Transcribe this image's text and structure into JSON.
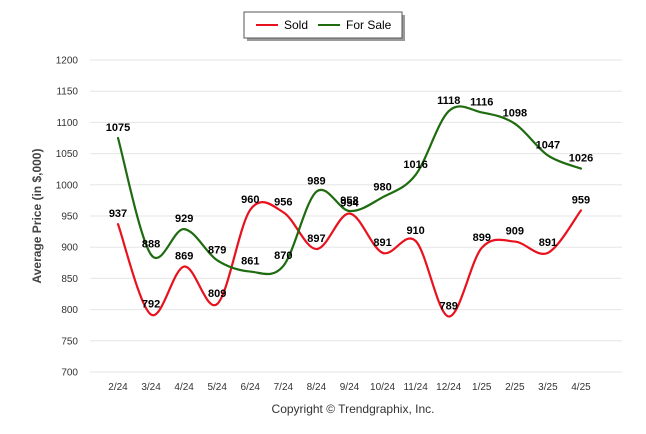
{
  "chart_data": {
    "type": "line",
    "categories": [
      "2/24",
      "3/24",
      "4/24",
      "5/24",
      "6/24",
      "7/24",
      "8/24",
      "9/24",
      "10/24",
      "11/24",
      "12/24",
      "1/25",
      "2/25",
      "3/25",
      "4/25"
    ],
    "series": [
      {
        "name": "Sold",
        "color": "#e8121e",
        "values": [
          937,
          792,
          869,
          809,
          960,
          956,
          897,
          954,
          891,
          910,
          789,
          899,
          909,
          891,
          959
        ]
      },
      {
        "name": "For Sale",
        "color": "#1e6b10",
        "values": [
          1075,
          888,
          929,
          879,
          861,
          870,
          989,
          958,
          980,
          1016,
          1118,
          1116,
          1098,
          1047,
          1026
        ]
      }
    ],
    "ylabel": "Average Price (in $,000)",
    "xlabel": "",
    "ylim": [
      700,
      1200
    ],
    "yticks": [
      700,
      750,
      800,
      850,
      900,
      950,
      1000,
      1050,
      1100,
      1150,
      1200
    ],
    "grid": true,
    "legend_position": "top-center"
  },
  "footer": "Copyright © Trendgraphix, Inc."
}
